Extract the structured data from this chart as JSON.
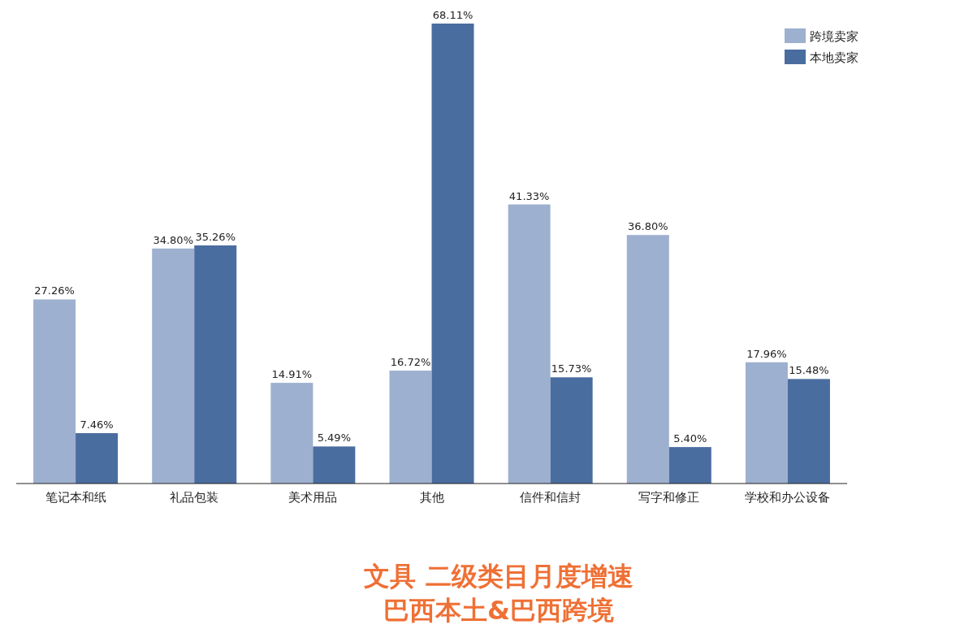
{
  "chart_data": {
    "type": "bar",
    "title": "文具 二级类目月度增速",
    "subtitle": "巴西本土&巴西跨境",
    "categories": [
      "笔记本和纸",
      "礼品包装",
      "美术用品",
      "其他",
      "信件和信封",
      "写字和修正",
      "学校和办公设备"
    ],
    "series": [
      {
        "name": "跨境卖家",
        "color": "#9db0cf",
        "values": [
          27.26,
          34.8,
          14.91,
          16.72,
          41.33,
          36.8,
          17.96
        ],
        "value_labels": [
          "27.26%",
          "34.80%",
          "14.91%",
          "16.72%",
          "41.33%",
          "36.80%",
          "17.96%"
        ]
      },
      {
        "name": "本地卖家",
        "color": "#4a6d9f",
        "values": [
          7.46,
          35.26,
          5.49,
          68.11,
          15.73,
          5.4,
          15.48
        ],
        "value_labels": [
          "7.46%",
          "35.26%",
          "5.49%",
          "68.11%",
          "15.73%",
          "5.40%",
          "15.48%"
        ]
      }
    ],
    "legend": "top right"
  }
}
